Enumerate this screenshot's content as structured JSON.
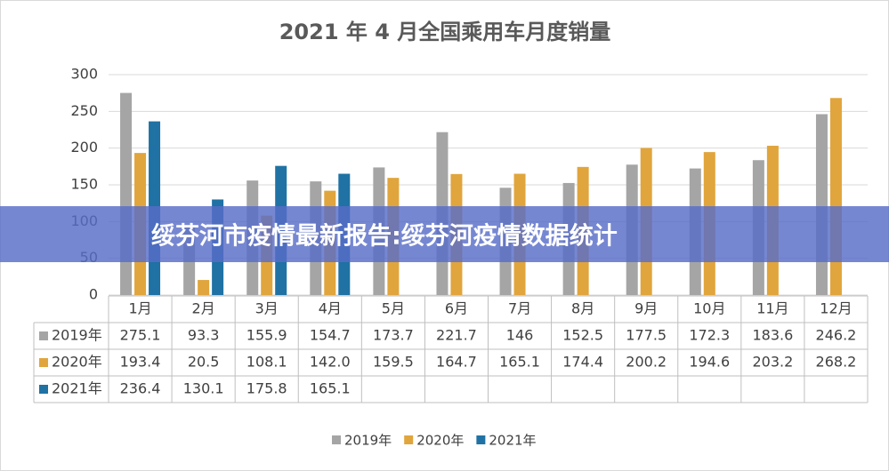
{
  "chart_data": {
    "type": "bar",
    "title": "2021 年 4 月全国乘用车月度销量",
    "categories": [
      "1月",
      "2月",
      "3月",
      "4月",
      "5月",
      "6月",
      "7月",
      "8月",
      "9月",
      "10月",
      "11月",
      "12月"
    ],
    "series": [
      {
        "name": "2019年",
        "color": "#a5a5a5",
        "values": [
          275.1,
          93.3,
          155.9,
          154.7,
          173.7,
          221.7,
          146,
          152.5,
          177.5,
          172.3,
          183.6,
          246.2
        ]
      },
      {
        "name": "2020年",
        "color": "#e0a53c",
        "values": [
          193.4,
          20.5,
          108.1,
          142.0,
          159.5,
          164.7,
          165.1,
          174.4,
          200.2,
          194.6,
          203.2,
          268.2
        ],
        "value_labels": [
          "193.4",
          "20.5",
          "108.1",
          "142.0",
          "159.5",
          "164.7",
          "165.1",
          "174.4",
          "200.2",
          "194.6",
          "203.2",
          "268.2"
        ]
      },
      {
        "name": "2021年",
        "color": "#1f72a3",
        "values": [
          236.4,
          130.1,
          175.8,
          165.1,
          null,
          null,
          null,
          null,
          null,
          null,
          null,
          null
        ]
      }
    ],
    "ylim": [
      0,
      300
    ],
    "yticks": [
      0,
      50,
      100,
      150,
      200,
      250,
      300
    ],
    "grid": true,
    "legend": "bottom"
  },
  "overlay_title": "绥芬河市疫情最新报告:绥芬河疫情数据统计"
}
